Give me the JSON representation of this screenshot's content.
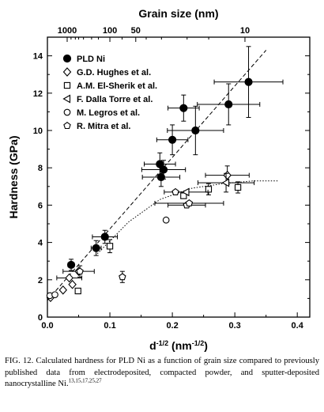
{
  "chart_data": {
    "type": "scatter",
    "xlabel_base": "d",
    "xlabel_base_exp": "-1/2",
    "xlabel_unit": "nm",
    "xlabel_unit_exp": "-1/2",
    "ylabel": "Hardness (GPa)",
    "top_axis_label": "Grain size (nm)",
    "xlim": [
      0,
      0.42
    ],
    "ylim": [
      0,
      15
    ],
    "x_ticks": [
      0.0,
      0.1,
      0.2,
      0.3,
      0.4
    ],
    "x_tick_labels": [
      "0.0",
      "0.1",
      "0.2",
      "0.3",
      "0.4"
    ],
    "y_ticks": [
      0,
      2,
      4,
      6,
      8,
      10,
      12,
      14
    ],
    "y_tick_labels": [
      "0",
      "2",
      "4",
      "6",
      "8",
      "10",
      "12",
      "14"
    ],
    "top_ticks": [
      {
        "label": "1000",
        "grain_nm": 1000
      },
      {
        "label": "100",
        "grain_nm": 100
      },
      {
        "label": "50",
        "grain_nm": 50
      },
      {
        "label": "10",
        "grain_nm": 10
      }
    ],
    "top_minor_ticks_nm": [
      700,
      500,
      400,
      300,
      200,
      150,
      70,
      40,
      30,
      20,
      15
    ],
    "grid": false,
    "legend_position": "top-left",
    "series": [
      {
        "name": "PLD Ni",
        "marker": "filled-circle",
        "points": [
          {
            "x": 0.038,
            "y": 2.8,
            "xerr": 0.005,
            "yerr": 0.3
          },
          {
            "x": 0.078,
            "y": 3.7,
            "xerr": 0.008,
            "yerr": 0.4
          },
          {
            "x": 0.092,
            "y": 4.3,
            "xerr": 0.02,
            "yerr": 0.35
          },
          {
            "x": 0.18,
            "y": 8.2,
            "xerr": 0.025,
            "yerr": 0.6
          },
          {
            "x": 0.182,
            "y": 7.5,
            "xerr": 0.03,
            "yerr": 0.5
          },
          {
            "x": 0.186,
            "y": 7.9,
            "xerr": 0.035,
            "yerr": 0.5
          },
          {
            "x": 0.2,
            "y": 9.5,
            "xerr": 0.025,
            "yerr": 0.8
          },
          {
            "x": 0.218,
            "y": 11.2,
            "xerr": 0.025,
            "yerr": 0.7
          },
          {
            "x": 0.237,
            "y": 10.0,
            "xerr": 0.045,
            "yerr": 1.3
          },
          {
            "x": 0.29,
            "y": 11.4,
            "xerr": 0.05,
            "yerr": 1.1
          },
          {
            "x": 0.322,
            "y": 12.6,
            "xerr": 0.055,
            "yerr": 1.9
          }
        ]
      },
      {
        "name": "G.D. Hughes et al.",
        "marker": "open-diamond",
        "points": [
          {
            "x": 0.005,
            "y": 1.05
          },
          {
            "x": 0.025,
            "y": 1.45
          },
          {
            "x": 0.035,
            "y": 2.1,
            "xerr": 0.02
          },
          {
            "x": 0.04,
            "y": 1.75
          },
          {
            "x": 0.05,
            "y": 2.45,
            "xerr": 0.025
          },
          {
            "x": 0.288,
            "y": 7.6,
            "xerr": 0.035,
            "yerr": 0.5
          }
        ]
      },
      {
        "name": "A.M. El-Sherik et al.",
        "marker": "open-square",
        "points": [
          {
            "x": 0.049,
            "y": 1.4
          },
          {
            "x": 0.1,
            "y": 3.8,
            "yerr": 0.35
          },
          {
            "x": 0.218,
            "y": 6.5
          },
          {
            "x": 0.258,
            "y": 6.85,
            "yerr": 0.3
          },
          {
            "x": 0.305,
            "y": 6.95,
            "yerr": 0.3
          }
        ]
      },
      {
        "name": "F. Dalla Torre et al.",
        "marker": "open-left-triangle",
        "points": [
          {
            "x": 0.222,
            "y": 6.7,
            "xerr": 0.035
          },
          {
            "x": 0.286,
            "y": 7.2,
            "xerr": 0.045,
            "yerr": 0.5
          }
        ]
      },
      {
        "name": "M. Legros et al.",
        "marker": "open-circle",
        "points": [
          {
            "x": 0.004,
            "y": 1.15
          },
          {
            "x": 0.012,
            "y": 1.2
          },
          {
            "x": 0.19,
            "y": 5.2
          }
        ]
      },
      {
        "name": "R. Mitra et al.",
        "marker": "open-pentagon",
        "points": [
          {
            "x": 0.052,
            "y": 2.45,
            "yerr": 0.3
          },
          {
            "x": 0.12,
            "y": 2.15,
            "yerr": 0.3
          },
          {
            "x": 0.205,
            "y": 6.7
          },
          {
            "x": 0.223,
            "y": 6.0,
            "xerr": 0.03
          },
          {
            "x": 0.227,
            "y": 6.1,
            "xerr": 0.055
          }
        ]
      }
    ],
    "fit_lines": [
      {
        "style": "dashed",
        "points": [
          [
            0.0,
            0.9
          ],
          [
            0.35,
            14.3
          ]
        ]
      },
      {
        "style": "dotted",
        "points": [
          [
            0.08,
            3.4
          ],
          [
            0.13,
            5.1
          ],
          [
            0.18,
            6.3
          ],
          [
            0.23,
            6.9
          ],
          [
            0.28,
            7.15
          ],
          [
            0.33,
            7.3
          ],
          [
            0.37,
            7.3
          ]
        ]
      }
    ]
  },
  "caption": {
    "prefix": "FIG. 12. Calculated hardness for PLD Ni as a function of grain size compared to previously published data from electrodeposited, compacted powder, and sputter-deposited nanocrystalline Ni.",
    "refs": "13,15,17,25,27"
  }
}
